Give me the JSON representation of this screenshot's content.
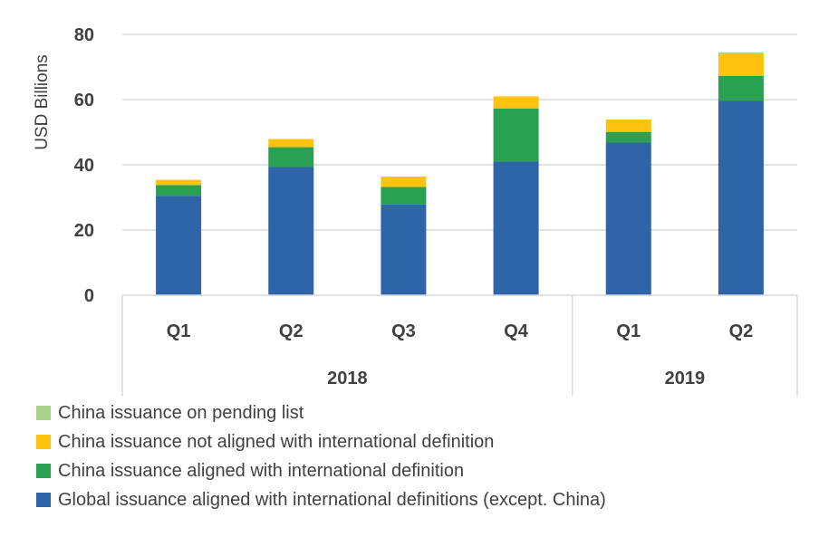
{
  "chart_data": {
    "type": "bar",
    "stacked": true,
    "ylabel": "USD Billions",
    "ylim": [
      0,
      80
    ],
    "yticks": [
      0,
      20,
      40,
      60,
      80
    ],
    "grid": true,
    "categories": [
      "Q1",
      "Q2",
      "Q3",
      "Q4",
      "Q1",
      "Q2"
    ],
    "groups": [
      {
        "label": "2018",
        "categories": [
          "Q1",
          "Q2",
          "Q3",
          "Q4"
        ]
      },
      {
        "label": "2019",
        "categories": [
          "Q1",
          "Q2"
        ]
      }
    ],
    "series": [
      {
        "name": "Global issuance aligned with international definitions (except. China)",
        "color": "#2e64a8",
        "values": [
          30.5,
          39.3,
          27.8,
          41.0,
          46.8,
          59.7
        ]
      },
      {
        "name": "China issuance aligned with international definition",
        "color": "#2aa052",
        "values": [
          3.3,
          6.1,
          5.4,
          16.3,
          3.3,
          7.6
        ]
      },
      {
        "name": "China issuance not aligned with international definition",
        "color": "#ffc20e",
        "values": [
          1.6,
          2.5,
          3.2,
          3.7,
          3.8,
          6.6
        ]
      },
      {
        "name": "China issuance on pending list",
        "color": "#a9d18e",
        "values": [
          0,
          0,
          0,
          0,
          0,
          0.6
        ]
      }
    ],
    "legend_order": [
      "China issuance on pending list",
      "China issuance not aligned with international definition",
      "China issuance aligned with international definition",
      "Global issuance aligned with international definitions (except. China)"
    ],
    "legend_position": "bottom"
  }
}
